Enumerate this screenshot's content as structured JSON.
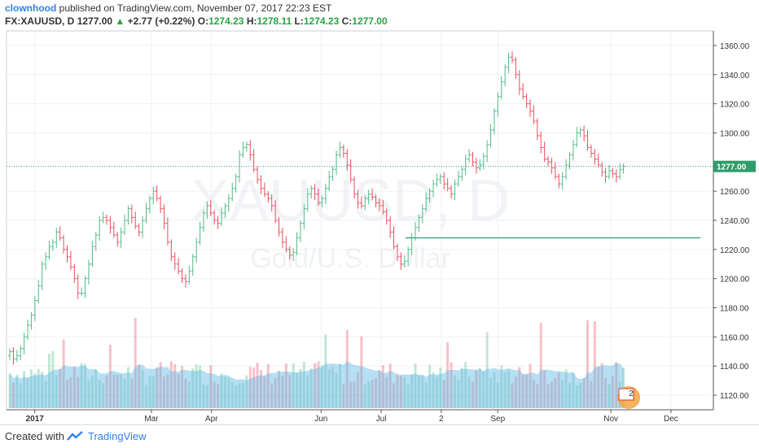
{
  "header": {
    "author": "clownhood",
    "published_text": " published on TradingView.com, November 07, 2017 22:23 EST",
    "symbol": "FX:XAUUSD, D",
    "last": "1277.00",
    "change_arrow": "▲",
    "change": "+2.77 (+0.22%)",
    "open_label": "O:",
    "open": "1274.23",
    "high_label": "H:",
    "high": "1278.11",
    "low_label": "L:",
    "low": "1274.23",
    "close_label": "C:",
    "close": "1277.00"
  },
  "watermark": {
    "symbol": "XAUUSD, D",
    "name": "Gold/U.S. Dollar"
  },
  "footer": {
    "created_with": "Created with",
    "brand": "TradingView"
  },
  "events_badge": "2",
  "colors": {
    "up": "#53b987",
    "down": "#eb4d5c",
    "volume_ma": "#5fb8e6",
    "support_line": "#2e9c6a",
    "price_line": "#2e9c6a",
    "price_label_bg": "#2e9c6a"
  },
  "chart_data": {
    "type": "bar",
    "title": "FX:XAUUSD, D",
    "ylim": [
      1110,
      1370
    ],
    "yticks": [
      1120,
      1140,
      1160,
      1180,
      1200,
      1220,
      1240,
      1260,
      1280,
      1300,
      1320,
      1340,
      1360
    ],
    "ytick_labels": [
      "1120.00",
      "1140.00",
      "1160.00",
      "1180.00",
      "1200.00",
      "1220.00",
      "1240.00",
      "1260.00",
      "",
      "1300.00",
      "1320.00",
      "1340.00",
      "1360.00"
    ],
    "x_labels": [
      "2017",
      "Mar",
      "Apr",
      "Jun",
      "Jul",
      "2",
      "Sep",
      "Nov",
      "Dec"
    ],
    "last_price": 1277.0,
    "last_price_label": "1277.00",
    "support_level": 1228.0,
    "series": [
      {
        "name": "",
        "values": [
          1150,
          1145,
          1147,
          1152,
          1160,
          1168,
          1175,
          1185,
          1195,
          1210,
          1215,
          1222,
          1225,
          1232,
          1228,
          1220,
          1215,
          1208,
          1200,
          1190,
          1190,
          1200,
          1210,
          1222,
          1230,
          1240,
          1242,
          1240,
          1235,
          1230,
          1225,
          1232,
          1240,
          1248,
          1242,
          1236,
          1232,
          1240,
          1248,
          1255,
          1260,
          1255,
          1248,
          1238,
          1225,
          1215,
          1210,
          1205,
          1200,
          1198,
          1205,
          1215,
          1225,
          1235,
          1245,
          1250,
          1245,
          1240,
          1238,
          1245,
          1250,
          1255,
          1262,
          1270,
          1285,
          1290,
          1292,
          1285,
          1275,
          1268,
          1262,
          1258,
          1255,
          1250,
          1240,
          1232,
          1225,
          1220,
          1216,
          1218,
          1228,
          1238,
          1248,
          1258,
          1262,
          1258,
          1252,
          1255,
          1262,
          1270,
          1275,
          1285,
          1290,
          1286,
          1278,
          1268,
          1258,
          1252,
          1250,
          1255,
          1258,
          1256,
          1252,
          1250,
          1246,
          1240,
          1232,
          1222,
          1215,
          1210,
          1212,
          1220,
          1228,
          1235,
          1242,
          1248,
          1255,
          1260,
          1265,
          1268,
          1270,
          1265,
          1262,
          1258,
          1265,
          1270,
          1275,
          1282,
          1285,
          1280,
          1276,
          1278,
          1284,
          1292,
          1302,
          1315,
          1325,
          1335,
          1345,
          1352,
          1350,
          1340,
          1330,
          1325,
          1320,
          1315,
          1308,
          1298,
          1290,
          1282,
          1280,
          1276,
          1270,
          1265,
          1270,
          1278,
          1285,
          1292,
          1300,
          1302,
          1298,
          1290,
          1286,
          1282,
          1278,
          1273,
          1270,
          1274,
          1272,
          1270,
          1275,
          1277
        ]
      }
    ],
    "volume_ylim": [
      0,
      100
    ]
  }
}
